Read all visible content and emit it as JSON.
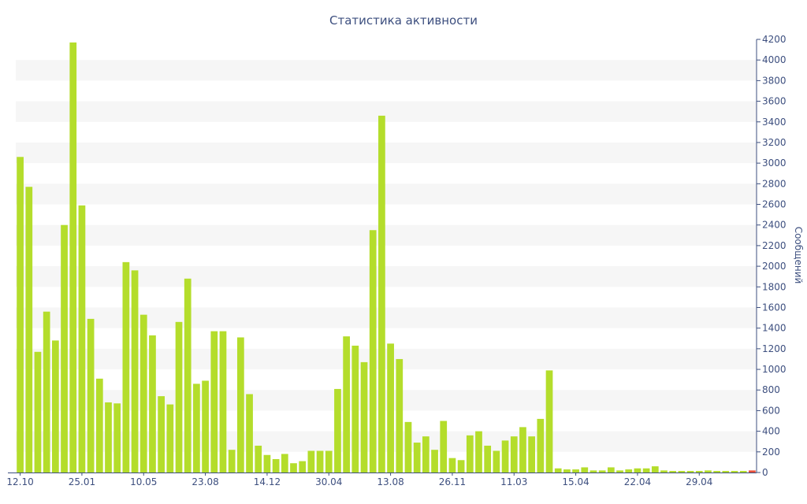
{
  "colors": {
    "bar": "#b4dd2b",
    "bar_alt": "#e8503a",
    "band": "#f6f6f6",
    "axis": "#3d4f7f",
    "text": "#3d4f7f"
  },
  "chart_data": {
    "type": "bar",
    "title": "Статистика активности",
    "xlabel": "",
    "ylabel": "Сообщений",
    "ylim": [
      0,
      4200
    ],
    "y_ticks": [
      0,
      200,
      400,
      600,
      800,
      1000,
      1200,
      1400,
      1600,
      1800,
      2000,
      2200,
      2400,
      2600,
      2800,
      3000,
      3200,
      3400,
      3600,
      3800,
      4000,
      4200
    ],
    "y_axis_side": "right",
    "grid": "alternating horizontal bands",
    "legend": "none",
    "x_tick_labels": [
      {
        "index": 0,
        "label": "12.10"
      },
      {
        "index": 7,
        "label": "25.01"
      },
      {
        "index": 14,
        "label": "10.05"
      },
      {
        "index": 21,
        "label": "23.08"
      },
      {
        "index": 28,
        "label": "14.12"
      },
      {
        "index": 35,
        "label": "30.04"
      },
      {
        "index": 42,
        "label": "13.08"
      },
      {
        "index": 49,
        "label": "26.11"
      },
      {
        "index": 56,
        "label": "11.03"
      },
      {
        "index": 63,
        "label": "15.04"
      },
      {
        "index": 70,
        "label": "22.04"
      },
      {
        "index": 77,
        "label": "29.04"
      }
    ],
    "values": [
      3060,
      2770,
      1170,
      1560,
      1280,
      2400,
      4170,
      2590,
      1490,
      910,
      680,
      670,
      2040,
      1960,
      1530,
      1330,
      740,
      660,
      1460,
      1880,
      860,
      890,
      1370,
      1370,
      220,
      1310,
      760,
      260,
      170,
      130,
      180,
      90,
      110,
      210,
      210,
      210,
      810,
      1320,
      1230,
      1070,
      2350,
      3460,
      1250,
      1100,
      490,
      290,
      350,
      220,
      500,
      140,
      120,
      360,
      400,
      260,
      210,
      310,
      350,
      440,
      350,
      520,
      990,
      40,
      30,
      30,
      50,
      20,
      20,
      50,
      20,
      30,
      40,
      40,
      60,
      20,
      15,
      15,
      15,
      15,
      20,
      15,
      15,
      15,
      15,
      20
    ],
    "highlighted_index": 83
  }
}
